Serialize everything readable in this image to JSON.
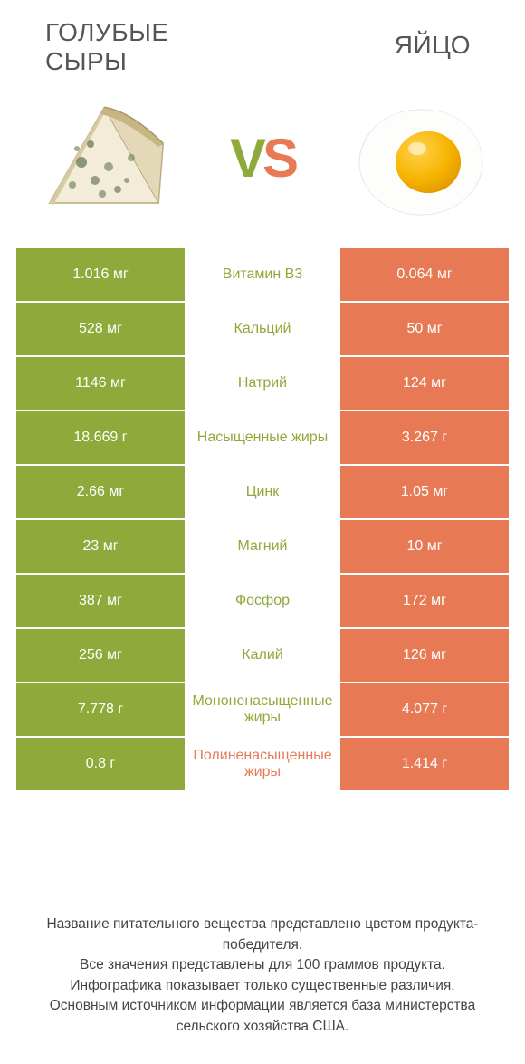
{
  "colors": {
    "left_bar": "#8fa93a",
    "right_bar": "#e77a54",
    "mid_left_text": "#8fa93a",
    "mid_right_text": "#e77a54",
    "bg": "#ffffff"
  },
  "header": {
    "left_title": "ГОЛУБЫЕ\nСЫРЫ",
    "right_title": "ЯЙЦО",
    "vs_v": "V",
    "vs_s": "S"
  },
  "rows": [
    {
      "left": "1.016 мг",
      "mid": "Витамин B3",
      "right": "0.064 мг",
      "winner": "left"
    },
    {
      "left": "528 мг",
      "mid": "Кальций",
      "right": "50 мг",
      "winner": "left"
    },
    {
      "left": "1146 мг",
      "mid": "Натрий",
      "right": "124 мг",
      "winner": "left"
    },
    {
      "left": "18.669 г",
      "mid": "Насыщенные жиры",
      "right": "3.267 г",
      "winner": "left"
    },
    {
      "left": "2.66 мг",
      "mid": "Цинк",
      "right": "1.05 мг",
      "winner": "left"
    },
    {
      "left": "23 мг",
      "mid": "Магний",
      "right": "10 мг",
      "winner": "left"
    },
    {
      "left": "387 мг",
      "mid": "Фосфор",
      "right": "172 мг",
      "winner": "left"
    },
    {
      "left": "256 мг",
      "mid": "Калий",
      "right": "126 мг",
      "winner": "left"
    },
    {
      "left": "7.778 г",
      "mid": "Мононенасыщенные жиры",
      "right": "4.077 г",
      "winner": "left"
    },
    {
      "left": "0.8 г",
      "mid": "Полиненасыщенные жиры",
      "right": "1.414 г",
      "winner": "right"
    }
  ],
  "footer": {
    "line1": "Название питательного вещества представлено цветом продукта-победителя.",
    "line2": "Все значения представлены для 100 граммов продукта.",
    "line3": "Инфографика показывает только существенные различия.",
    "line4": "Основным источником информации является база министерства сельского хозяйства США."
  }
}
